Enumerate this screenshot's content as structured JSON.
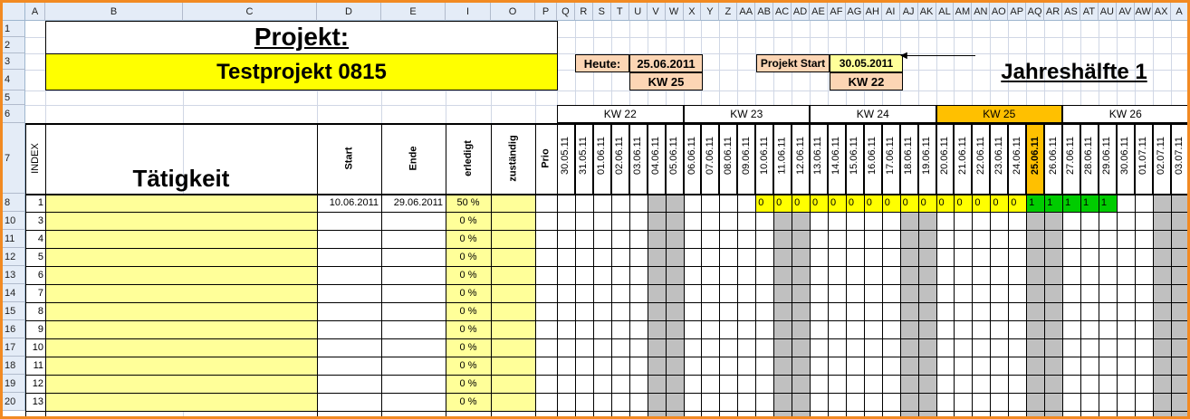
{
  "colors": {
    "header_bg": "#e4ecf7",
    "task_fill": "#ffff99",
    "title_fill": "#ffff00",
    "orange_box": "#fcd5b4",
    "current_week": "#ffc000",
    "weekend": "#c0c0c0",
    "bar_yellow": "#ffff00",
    "bar_green": "#00cc00",
    "frame": "#f28a22"
  },
  "column_letters": [
    "A",
    "B",
    "C",
    "D",
    "E",
    "I",
    "O",
    "P",
    "Q",
    "R",
    "S",
    "T",
    "U",
    "V",
    "W",
    "X",
    "Y",
    "Z",
    "AA",
    "AB",
    "AC",
    "AD",
    "AE",
    "AF",
    "AG",
    "AH",
    "AI",
    "AJ",
    "AK",
    "AL",
    "AM",
    "AN",
    "AO",
    "AP",
    "AQ",
    "AR",
    "AS",
    "AT",
    "AU",
    "AV",
    "AW",
    "AX",
    "A"
  ],
  "row_numbers": [
    "1",
    "2",
    "3",
    "4",
    "5",
    "6",
    "7",
    "8",
    "10",
    "11",
    "12",
    "13",
    "14",
    "15",
    "16",
    "17",
    "18",
    "19",
    "20"
  ],
  "project": {
    "label": "Projekt:",
    "name": "Testprojekt 0815"
  },
  "today": {
    "label": "Heute:",
    "date": "25.06.2011",
    "kw": "KW 25"
  },
  "project_start": {
    "label": "Projekt Start",
    "date": "30.05.2011",
    "kw": "KW 22"
  },
  "half_year": "Jahreshälfte 1",
  "headers": {
    "index": "INDEX",
    "task": "Tätigkeit",
    "start": "Start",
    "end": "Ende",
    "done": "erledigt",
    "responsible": "zuständig",
    "prio": "Prio"
  },
  "weeks": [
    {
      "label": "KW 22",
      "current": false
    },
    {
      "label": "KW 23",
      "current": false
    },
    {
      "label": "KW 24",
      "current": false
    },
    {
      "label": "KW 25",
      "current": true
    },
    {
      "label": "KW 26",
      "current": false
    }
  ],
  "dates": [
    "30.05.11",
    "31.05.11",
    "01.06.11",
    "02.06.11",
    "03.06.11",
    "04.06.11",
    "05.06.11",
    "06.06.11",
    "07.06.11",
    "08.06.11",
    "09.06.11",
    "10.06.11",
    "11.06.11",
    "12.06.11",
    "13.06.11",
    "14.06.11",
    "15.06.11",
    "16.06.11",
    "17.06.11",
    "18.06.11",
    "19.06.11",
    "20.06.11",
    "21.06.11",
    "22.06.11",
    "23.06.11",
    "24.06.11",
    "25.06.11",
    "26.06.11",
    "27.06.11",
    "28.06.11",
    "29.06.11",
    "30.06.11",
    "01.07.11",
    "02.07.11",
    "03.07.11"
  ],
  "today_index": 26,
  "rows": [
    {
      "row": "8",
      "index": "1",
      "start": "10.06.2011",
      "end": "29.06.2011",
      "done": "50 %"
    },
    {
      "row": "10",
      "index": "3",
      "start": "",
      "end": "",
      "done": "0 %"
    },
    {
      "row": "11",
      "index": "4",
      "start": "",
      "end": "",
      "done": "0 %"
    },
    {
      "row": "12",
      "index": "5",
      "start": "",
      "end": "",
      "done": "0 %"
    },
    {
      "row": "13",
      "index": "6",
      "start": "",
      "end": "",
      "done": "0 %"
    },
    {
      "row": "14",
      "index": "7",
      "start": "",
      "end": "",
      "done": "0 %"
    },
    {
      "row": "15",
      "index": "8",
      "start": "",
      "end": "",
      "done": "0 %"
    },
    {
      "row": "16",
      "index": "9",
      "start": "",
      "end": "",
      "done": "0 %"
    },
    {
      "row": "17",
      "index": "10",
      "start": "",
      "end": "",
      "done": "0 %"
    },
    {
      "row": "18",
      "index": "11",
      "start": "",
      "end": "",
      "done": "0 %"
    },
    {
      "row": "19",
      "index": "12",
      "start": "",
      "end": "",
      "done": "0 %"
    },
    {
      "row": "20",
      "index": "13",
      "start": "",
      "end": "",
      "done": "0 %"
    }
  ],
  "gantt_row1": {
    "start_day": 11,
    "values": [
      "0",
      "0",
      "0",
      "0",
      "0",
      "0",
      "0",
      "0",
      "0",
      "0",
      "0",
      "0",
      "0",
      "0",
      "0",
      "1",
      "1",
      "1",
      "1",
      "1"
    ],
    "green_from": 26
  }
}
